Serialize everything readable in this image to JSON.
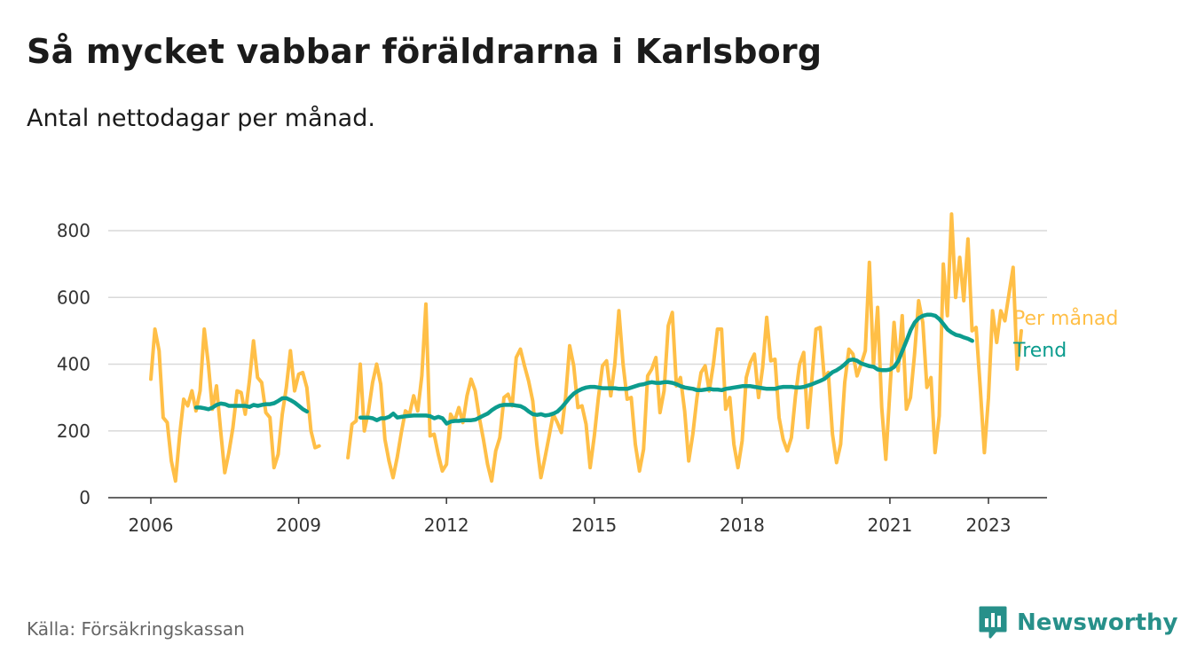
{
  "title": "Så mycket vabbar föräldrarna i Karlsborg",
  "subtitle": "Antal nettodagar per månad.",
  "source": "Källa: Försäkringskassan",
  "brand": "Newsworthy",
  "colors": {
    "monthly": "#ffbf47",
    "trend": "#0c9c8e",
    "grid": "#d9d9d9",
    "brand": "#27908a"
  },
  "chart_data": {
    "type": "line",
    "title": "Så mycket vabbar föräldrarna i Karlsborg",
    "subtitle": "Antal nettodagar per månad.",
    "xlabel": "",
    "ylabel": "",
    "ylim": [
      0,
      850
    ],
    "yticks": [
      0,
      200,
      400,
      600,
      800
    ],
    "xticks": [
      2006,
      2009,
      2012,
      2015,
      2018,
      2021,
      2023
    ],
    "xlim": [
      2005.1,
      2024.1
    ],
    "grid": true,
    "legend": "end-of-line labels",
    "series": [
      {
        "name": "Per månad",
        "color": "#ffbf47",
        "start": 2006.0,
        "step": 0.0833333,
        "values": [
          355,
          505,
          440,
          240,
          225,
          110,
          50,
          185,
          295,
          275,
          320,
          260,
          320,
          505,
          400,
          265,
          335,
          200,
          75,
          135,
          210,
          320,
          315,
          250,
          350,
          470,
          360,
          345,
          255,
          240,
          90,
          130,
          250,
          330,
          440,
          320,
          370,
          375,
          330,
          200,
          150,
          155,
          null,
          null,
          null,
          null,
          null,
          null,
          120,
          220,
          230,
          400,
          200,
          260,
          345,
          400,
          340,
          175,
          110,
          60,
          120,
          195,
          260,
          250,
          305,
          260,
          365,
          580,
          185,
          190,
          130,
          80,
          100,
          250,
          230,
          270,
          225,
          305,
          355,
          320,
          240,
          175,
          100,
          50,
          140,
          180,
          300,
          310,
          275,
          420,
          445,
          395,
          350,
          290,
          160,
          60,
          120,
          185,
          250,
          225,
          195,
          300,
          455,
          395,
          270,
          275,
          220,
          90,
          185,
          300,
          395,
          410,
          305,
          400,
          560,
          400,
          295,
          300,
          160,
          80,
          145,
          365,
          385,
          420,
          255,
          320,
          515,
          555,
          335,
          360,
          260,
          110,
          190,
          300,
          375,
          395,
          320,
          400,
          505,
          505,
          265,
          300,
          160,
          90,
          170,
          360,
          405,
          430,
          300,
          390,
          540,
          410,
          415,
          240,
          175,
          140,
          180,
          305,
          400,
          435,
          210,
          355,
          505,
          510,
          360,
          375,
          190,
          105,
          160,
          345,
          445,
          430,
          365,
          400,
          440,
          705,
          395,
          570,
          270,
          115,
          320,
          525,
          380,
          545,
          265,
          300,
          430,
          590,
          525,
          330,
          360,
          135,
          245,
          700,
          545,
          850,
          600,
          720,
          590,
          775,
          500,
          510,
          330,
          135,
          300,
          560,
          465,
          560,
          530,
          610,
          690,
          385,
          500
        ]
      },
      {
        "name": "Trend",
        "color": "#0c9c8e",
        "start": 2006.92,
        "step": 0.0833333,
        "values": [
          270,
          270,
          268,
          265,
          270,
          278,
          282,
          280,
          275,
          275,
          275,
          275,
          275,
          272,
          278,
          275,
          278,
          280,
          280,
          283,
          290,
          298,
          298,
          292,
          285,
          275,
          265,
          258,
          null,
          null,
          null,
          null,
          null,
          null,
          null,
          null,
          null,
          null,
          null,
          null,
          240,
          240,
          240,
          238,
          232,
          238,
          238,
          242,
          252,
          240,
          242,
          244,
          245,
          246,
          246,
          246,
          246,
          244,
          238,
          242,
          238,
          222,
          228,
          230,
          230,
          232,
          232,
          232,
          234,
          240,
          246,
          252,
          262,
          270,
          276,
          278,
          278,
          278,
          276,
          274,
          268,
          258,
          250,
          248,
          250,
          246,
          248,
          252,
          258,
          270,
          285,
          300,
          312,
          320,
          326,
          330,
          332,
          332,
          330,
          328,
          328,
          328,
          328,
          326,
          326,
          326,
          330,
          334,
          338,
          340,
          344,
          346,
          344,
          344,
          346,
          346,
          344,
          340,
          334,
          330,
          328,
          326,
          322,
          322,
          324,
          326,
          324,
          324,
          322,
          326,
          328,
          330,
          332,
          334,
          334,
          334,
          332,
          330,
          328,
          326,
          326,
          326,
          330,
          332,
          332,
          332,
          330,
          330,
          332,
          336,
          340,
          345,
          350,
          356,
          366,
          376,
          382,
          390,
          400,
          412,
          414,
          410,
          402,
          398,
          394,
          392,
          384,
          382,
          382,
          384,
          392,
          410,
          440,
          470,
          502,
          525,
          538,
          545,
          548,
          548,
          545,
          535,
          520,
          504,
          495,
          488,
          485,
          480,
          476,
          470
        ]
      }
    ]
  }
}
